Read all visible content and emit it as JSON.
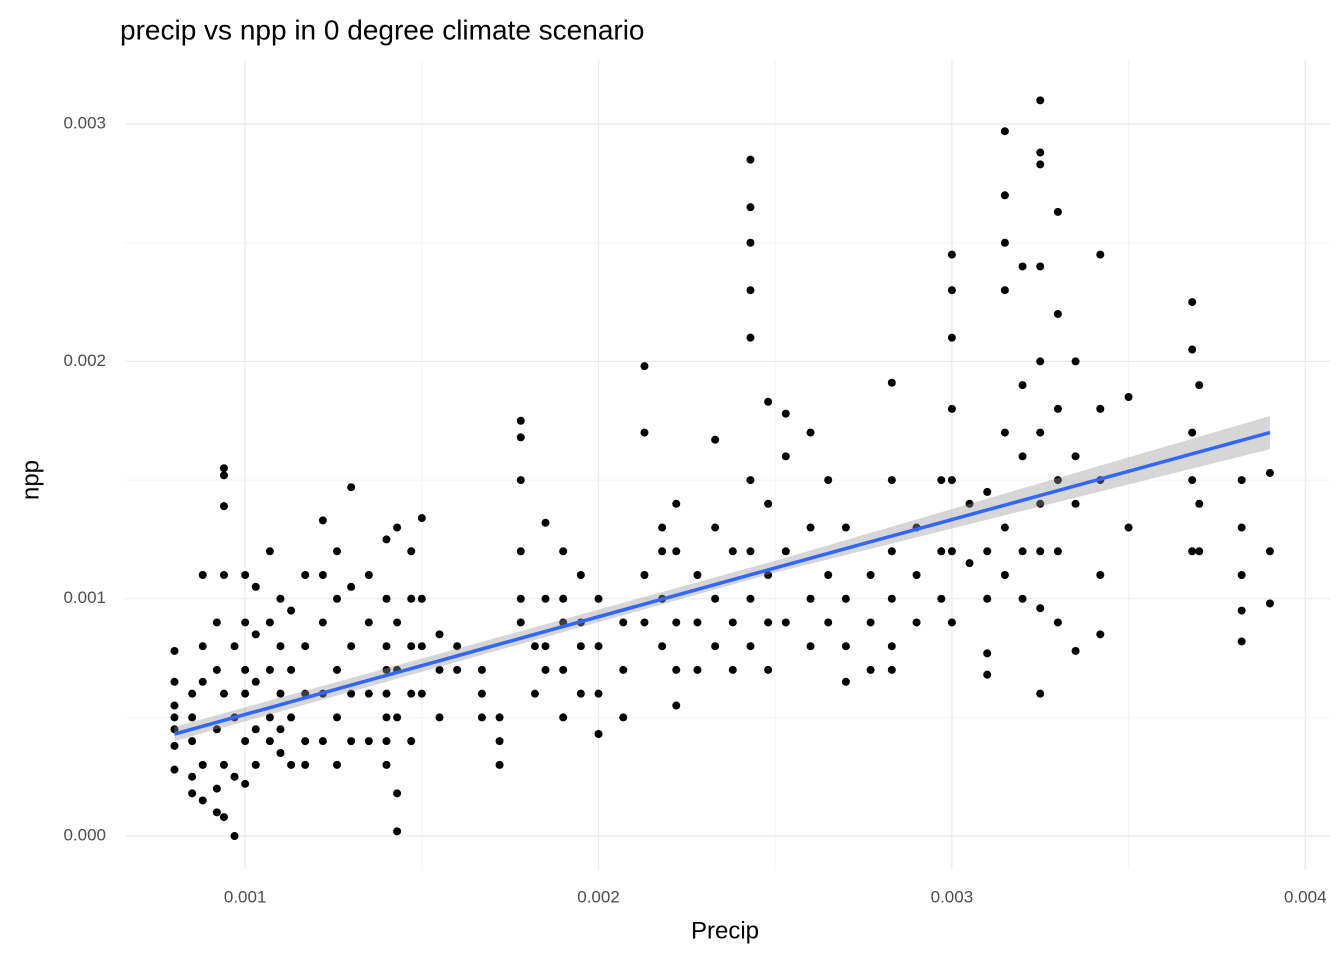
{
  "chart_data": {
    "type": "scatter",
    "title": "precip vs npp in 0 degree climate scenario",
    "x_label": "Precip",
    "y_label": "npp",
    "xlim": [
      0.00066,
      0.00407
    ],
    "ylim": [
      -0.000143,
      0.00327
    ],
    "xticks": [
      0.001,
      0.002,
      0.003,
      0.004
    ],
    "yticks": [
      {
        "value": 0,
        "label": "0.000"
      },
      0.001,
      0.002,
      0.003
    ],
    "xminorticks": [
      0.0015,
      0.0025,
      0.0035
    ],
    "yminorticks": [
      0.0005,
      0.0015,
      0.0025
    ],
    "grid": true,
    "series": [
      {
        "color": "#000000",
        "x": [
          0.0008,
          0.0008,
          0.0008,
          0.0008,
          0.0008,
          0.0008,
          0.0008,
          0.00085,
          0.00085,
          0.00085,
          0.00085,
          0.00085,
          0.00088,
          0.00088,
          0.00088,
          0.00088,
          0.00088,
          0.00092,
          0.00092,
          0.00092,
          0.00092,
          0.00092,
          0.00094,
          0.00094,
          0.00094,
          0.00094,
          0.00094,
          0.00094,
          0.00094,
          0.00097,
          0.00097,
          0.00097,
          0.00097,
          0.001,
          0.001,
          0.001,
          0.001,
          0.001,
          0.001,
          0.00103,
          0.00103,
          0.00103,
          0.00103,
          0.00103,
          0.00107,
          0.00107,
          0.00107,
          0.00107,
          0.00107,
          0.0011,
          0.0011,
          0.0011,
          0.0011,
          0.0011,
          0.00113,
          0.00113,
          0.00113,
          0.00113,
          0.00117,
          0.00117,
          0.00117,
          0.00117,
          0.00117,
          0.00122,
          0.00122,
          0.00122,
          0.00122,
          0.00122,
          0.00126,
          0.00126,
          0.00126,
          0.00126,
          0.00126,
          0.0013,
          0.0013,
          0.0013,
          0.0013,
          0.0013,
          0.00135,
          0.00135,
          0.00135,
          0.00135,
          0.0014,
          0.0014,
          0.0014,
          0.0014,
          0.0014,
          0.0014,
          0.0014,
          0.0014,
          0.00143,
          0.00143,
          0.00143,
          0.00143,
          0.00143,
          0.00143,
          0.00147,
          0.00147,
          0.00147,
          0.00147,
          0.00147,
          0.0015,
          0.0015,
          0.0015,
          0.0015,
          0.00155,
          0.00155,
          0.00155,
          0.0016,
          0.0016,
          0.00167,
          0.00167,
          0.00167,
          0.00172,
          0.00172,
          0.00172,
          0.00178,
          0.00178,
          0.00178,
          0.00178,
          0.00178,
          0.00178,
          0.00182,
          0.00182,
          0.00185,
          0.00185,
          0.00185,
          0.00185,
          0.0019,
          0.0019,
          0.0019,
          0.0019,
          0.0019,
          0.00195,
          0.00195,
          0.00195,
          0.00195,
          0.002,
          0.002,
          0.002,
          0.002,
          0.00207,
          0.00207,
          0.00207,
          0.00213,
          0.00213,
          0.00213,
          0.00213,
          0.00218,
          0.00218,
          0.00218,
          0.00218,
          0.00222,
          0.00222,
          0.00222,
          0.00222,
          0.00222,
          0.00228,
          0.00228,
          0.00228,
          0.00233,
          0.00233,
          0.00233,
          0.00233,
          0.00238,
          0.00238,
          0.00238,
          0.00243,
          0.00243,
          0.00243,
          0.00243,
          0.00243,
          0.00243,
          0.00243,
          0.00243,
          0.00243,
          0.00248,
          0.00248,
          0.00248,
          0.00248,
          0.00248,
          0.00253,
          0.00253,
          0.00253,
          0.00253,
          0.0026,
          0.0026,
          0.0026,
          0.0026,
          0.00265,
          0.00265,
          0.00265,
          0.0027,
          0.0027,
          0.0027,
          0.0027,
          0.00277,
          0.00277,
          0.00277,
          0.00283,
          0.00283,
          0.00283,
          0.00283,
          0.00283,
          0.00283,
          0.0029,
          0.0029,
          0.0029,
          0.00297,
          0.00297,
          0.00297,
          0.003,
          0.003,
          0.003,
          0.003,
          0.003,
          0.003,
          0.003,
          0.00305,
          0.00305,
          0.0031,
          0.0031,
          0.0031,
          0.0031,
          0.0031,
          0.00315,
          0.00315,
          0.00315,
          0.00315,
          0.00315,
          0.00315,
          0.00315,
          0.0032,
          0.0032,
          0.0032,
          0.0032,
          0.0032,
          0.00325,
          0.00325,
          0.00325,
          0.00325,
          0.00325,
          0.00325,
          0.00325,
          0.00325,
          0.00325,
          0.00325,
          0.0033,
          0.0033,
          0.0033,
          0.0033,
          0.0033,
          0.0033,
          0.00335,
          0.00335,
          0.00335,
          0.00335,
          0.00342,
          0.00342,
          0.00342,
          0.00342,
          0.00342,
          0.0035,
          0.0035,
          0.00368,
          0.00368,
          0.00368,
          0.00368,
          0.00368,
          0.0037,
          0.0037,
          0.0037,
          0.00382,
          0.00382,
          0.00382,
          0.00382,
          0.00382,
          0.0039,
          0.0039,
          0.0039
        ],
        "values": [
          0.00078,
          0.00065,
          0.00055,
          0.0005,
          0.00045,
          0.00038,
          0.00028,
          0.0006,
          0.0004,
          0.00025,
          0.00018,
          0.0005,
          0.0011,
          0.0008,
          0.00065,
          0.0003,
          0.00015,
          0.0009,
          0.0007,
          0.00045,
          0.0002,
          0.0001,
          0.00155,
          0.00152,
          0.00139,
          0.0011,
          0.0006,
          0.0003,
          8e-05,
          0,
          0.0008,
          0.0005,
          0.00025,
          0.0011,
          0.0009,
          0.0007,
          0.0006,
          0.0004,
          0.00022,
          0.00105,
          0.00085,
          0.00065,
          0.00045,
          0.0003,
          0.0012,
          0.0009,
          0.0007,
          0.0005,
          0.0004,
          0.001,
          0.0008,
          0.0006,
          0.00045,
          0.00035,
          0.00095,
          0.0007,
          0.0005,
          0.0003,
          0.0011,
          0.0008,
          0.0006,
          0.0004,
          0.0003,
          0.00133,
          0.0011,
          0.0009,
          0.0006,
          0.0004,
          0.0012,
          0.001,
          0.0007,
          0.0005,
          0.0003,
          0.00147,
          0.00105,
          0.0008,
          0.0006,
          0.0004,
          0.0011,
          0.0009,
          0.0006,
          0.0004,
          0.00125,
          0.001,
          0.0008,
          0.0007,
          0.0006,
          0.0005,
          0.0004,
          0.0003,
          0.0013,
          0.0009,
          0.0007,
          0.0005,
          0.00018,
          2e-05,
          0.0012,
          0.001,
          0.0008,
          0.0006,
          0.0004,
          0.00134,
          0.001,
          0.0008,
          0.0006,
          0.00085,
          0.0007,
          0.0005,
          0.0008,
          0.0007,
          0.0007,
          0.0006,
          0.0005,
          0.0005,
          0.0004,
          0.0003,
          0.00175,
          0.00168,
          0.0015,
          0.0012,
          0.001,
          0.0009,
          0.0008,
          0.0006,
          0.00132,
          0.001,
          0.0008,
          0.0007,
          0.0012,
          0.001,
          0.0009,
          0.0007,
          0.0005,
          0.0011,
          0.0009,
          0.0008,
          0.0006,
          0.001,
          0.0008,
          0.0006,
          0.00043,
          0.0009,
          0.0007,
          0.0005,
          0.00198,
          0.0017,
          0.0011,
          0.0009,
          0.0013,
          0.0012,
          0.001,
          0.0008,
          0.0014,
          0.0012,
          0.0009,
          0.0007,
          0.00055,
          0.0011,
          0.0009,
          0.0007,
          0.00167,
          0.0013,
          0.001,
          0.0008,
          0.0012,
          0.0009,
          0.0007,
          0.00285,
          0.00265,
          0.0025,
          0.0023,
          0.0021,
          0.0015,
          0.0012,
          0.001,
          0.0008,
          0.00183,
          0.0014,
          0.0011,
          0.0009,
          0.0007,
          0.00178,
          0.0016,
          0.0012,
          0.0009,
          0.0017,
          0.0013,
          0.001,
          0.0008,
          0.0015,
          0.0011,
          0.0009,
          0.0013,
          0.001,
          0.0008,
          0.00065,
          0.0011,
          0.0009,
          0.0007,
          0.00191,
          0.0015,
          0.0012,
          0.001,
          0.0008,
          0.0007,
          0.0013,
          0.0011,
          0.0009,
          0.0015,
          0.0012,
          0.001,
          0.00245,
          0.0023,
          0.0021,
          0.0018,
          0.0015,
          0.0012,
          0.0009,
          0.0014,
          0.00115,
          0.00145,
          0.0012,
          0.001,
          0.00077,
          0.00068,
          0.00297,
          0.0027,
          0.0025,
          0.0023,
          0.0017,
          0.0013,
          0.0011,
          0.0024,
          0.0019,
          0.0016,
          0.0012,
          0.001,
          0.0031,
          0.00288,
          0.00283,
          0.0024,
          0.002,
          0.0017,
          0.0014,
          0.0012,
          0.00096,
          0.0006,
          0.00263,
          0.0022,
          0.0018,
          0.0015,
          0.0012,
          0.0009,
          0.002,
          0.0016,
          0.0014,
          0.00078,
          0.00245,
          0.0018,
          0.0015,
          0.0011,
          0.00085,
          0.00185,
          0.0013,
          0.00225,
          0.00205,
          0.0017,
          0.0015,
          0.0012,
          0.0019,
          0.0014,
          0.0012,
          0.0015,
          0.0013,
          0.0011,
          0.00095,
          0.00082,
          0.00153,
          0.0012,
          0.00098
        ]
      }
    ],
    "trend": {
      "color": "#3366FF",
      "x": [
        0.0008,
        0.0025,
        0.0039
      ],
      "values": [
        0.00043,
        0.00113,
        0.0017
      ],
      "ci_lower": [
        0.0004,
        0.00111,
        0.00163
      ],
      "ci_upper": [
        0.00046,
        0.00116,
        0.00177
      ]
    }
  }
}
